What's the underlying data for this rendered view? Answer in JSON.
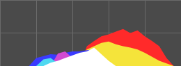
{
  "chart_data": {
    "type": "area",
    "x": [
      0,
      10,
      20,
      30,
      40,
      50,
      60,
      70,
      80,
      90,
      100,
      110,
      120,
      130,
      140,
      150,
      160,
      170,
      180,
      190,
      200,
      210,
      220,
      230,
      240,
      250
    ],
    "series": [
      {
        "color": "#ff2a2a",
        "values": [
          0,
          0,
          0,
          0,
          0,
          0,
          0,
          0,
          0,
          0,
          0,
          0,
          30,
          38,
          45,
          48,
          52,
          56,
          50,
          54,
          45,
          38,
          30,
          12,
          0,
          0
        ]
      },
      {
        "color": "#f5e43a",
        "values": [
          0,
          0,
          0,
          0,
          0,
          0,
          0,
          0,
          0,
          0,
          0,
          15,
          25,
          30,
          35,
          37,
          33,
          30,
          28,
          25,
          20,
          14,
          8,
          4,
          0,
          0
        ]
      },
      {
        "color": "#3a3aff",
        "values": [
          0,
          0,
          0,
          0,
          0,
          12,
          15,
          18,
          17,
          20,
          22,
          22,
          24,
          25,
          10,
          0,
          0,
          0,
          0,
          0,
          0,
          0,
          0,
          0,
          0,
          0
        ]
      },
      {
        "color": "#d24bd2",
        "values": [
          0,
          0,
          0,
          0,
          0,
          0,
          0,
          0,
          19,
          22,
          12,
          0,
          0,
          0,
          0,
          0,
          0,
          0,
          0,
          0,
          0,
          0,
          0,
          0,
          0,
          0
        ]
      },
      {
        "color": "#4fd8f0",
        "values": [
          0,
          0,
          0,
          0,
          0,
          0,
          10,
          12,
          4,
          0,
          0,
          0,
          20,
          26,
          10,
          0,
          0,
          0,
          0,
          0,
          0,
          0,
          0,
          0,
          0,
          0
        ]
      },
      {
        "color": "#ffffff",
        "values": [
          0,
          0,
          0,
          0,
          0,
          0,
          0,
          5,
          8,
          12,
          16,
          20,
          22,
          28,
          18,
          8,
          0,
          0,
          0,
          0,
          0,
          0,
          0,
          0,
          0,
          0
        ]
      }
    ],
    "xlim": [
      0,
      250
    ],
    "xticks": [
      0,
      50,
      100,
      150,
      200,
      250
    ],
    "ylim": [
      0,
      100
    ],
    "yticks": [
      0,
      50,
      100
    ],
    "grid": true,
    "tick_labels": false
  }
}
